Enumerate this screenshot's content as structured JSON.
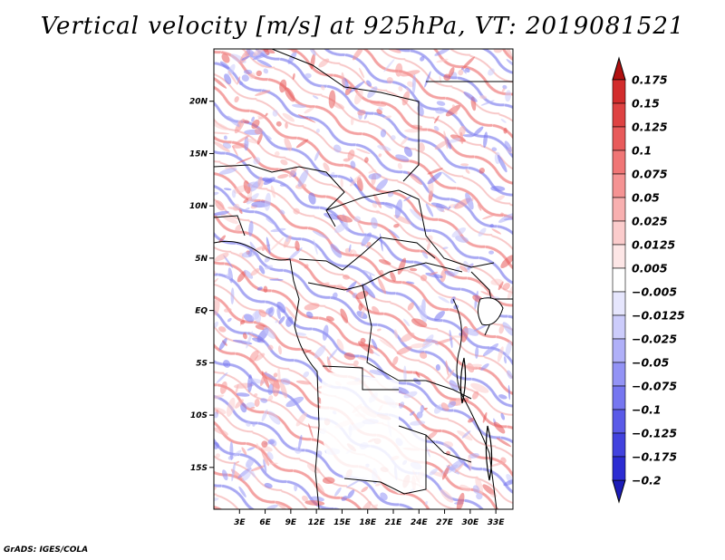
{
  "title": "Vertical velocity [m/s] at 925hPa, VT: 2019081521",
  "credit": "GrADS: IGES/COLA",
  "map": {
    "lat_range": [
      -19,
      25
    ],
    "lon_range": [
      0,
      35
    ],
    "lat_ticks": [
      {
        "value": 20,
        "label": "20N"
      },
      {
        "value": 15,
        "label": "15N"
      },
      {
        "value": 10,
        "label": "10N"
      },
      {
        "value": 5,
        "label": "5N"
      },
      {
        "value": 0,
        "label": "EQ"
      },
      {
        "value": -5,
        "label": "5S"
      },
      {
        "value": -10,
        "label": "10S"
      },
      {
        "value": -15,
        "label": "15S"
      }
    ],
    "lon_ticks": [
      {
        "value": 3,
        "label": "3E"
      },
      {
        "value": 6,
        "label": "6E"
      },
      {
        "value": 9,
        "label": "9E"
      },
      {
        "value": 12,
        "label": "12E"
      },
      {
        "value": 15,
        "label": "15E"
      },
      {
        "value": 18,
        "label": "18E"
      },
      {
        "value": 21,
        "label": "21E"
      },
      {
        "value": 24,
        "label": "24E"
      },
      {
        "value": 27,
        "label": "27E"
      },
      {
        "value": 30,
        "label": "30E"
      },
      {
        "value": 33,
        "label": "33E"
      }
    ]
  },
  "colorbar": {
    "levels": [
      {
        "label": "0.175",
        "color": "#c21c1c"
      },
      {
        "label": "0.15",
        "color": "#d22c2c"
      },
      {
        "label": "0.125",
        "color": "#de4242"
      },
      {
        "label": "0.1",
        "color": "#e85a5a"
      },
      {
        "label": "0.075",
        "color": "#f07676"
      },
      {
        "label": "0.05",
        "color": "#f59393"
      },
      {
        "label": "0.025",
        "color": "#f8b0b0"
      },
      {
        "label": "0.0125",
        "color": "#fbcccc"
      },
      {
        "label": "0.005",
        "color": "#fde6e6"
      },
      {
        "label": "−0.005",
        "color": "#ffffff"
      },
      {
        "label": "−0.0125",
        "color": "#e6e6fd"
      },
      {
        "label": "−0.025",
        "color": "#ccccfb"
      },
      {
        "label": "−0.05",
        "color": "#b0b0f8"
      },
      {
        "label": "−0.075",
        "color": "#9393f5"
      },
      {
        "label": "−0.1",
        "color": "#7676f0"
      },
      {
        "label": "−0.125",
        "color": "#5a5ae8"
      },
      {
        "label": "−0.175",
        "color": "#4242de"
      },
      {
        "label": "−0.2",
        "color": "#2c2cd2"
      }
    ],
    "top_color": "#b01010",
    "bottom_color": "#1c1cb8"
  }
}
